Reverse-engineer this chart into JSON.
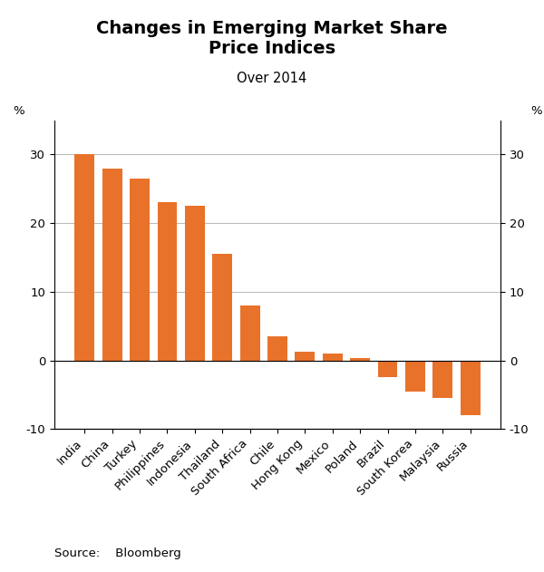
{
  "title": "Changes in Emerging Market Share\nPrice Indices",
  "subtitle": "Over 2014",
  "source": "Source:    Bloomberg",
  "categories": [
    "India",
    "China",
    "Turkey",
    "Philippines",
    "Indonesia",
    "Thailand",
    "South Africa",
    "Chile",
    "Hong Kong",
    "Mexico",
    "Poland",
    "Brazil",
    "South Korea",
    "Malaysia",
    "Russia"
  ],
  "values": [
    30.0,
    28.0,
    26.5,
    23.0,
    22.5,
    15.5,
    8.0,
    3.5,
    1.2,
    1.0,
    0.3,
    -2.5,
    -4.5,
    -5.5,
    -8.0
  ],
  "bar_color": "#E8722A",
  "ylim": [
    -10,
    35
  ],
  "yticks": [
    -10,
    0,
    10,
    20,
    30
  ],
  "ylabel_left": "%",
  "ylabel_right": "%",
  "background_color": "#ffffff",
  "grid_color": "#bbbbbb",
  "title_fontsize": 14,
  "subtitle_fontsize": 10.5,
  "tick_fontsize": 9.5,
  "source_fontsize": 9.5,
  "bar_width": 0.72
}
